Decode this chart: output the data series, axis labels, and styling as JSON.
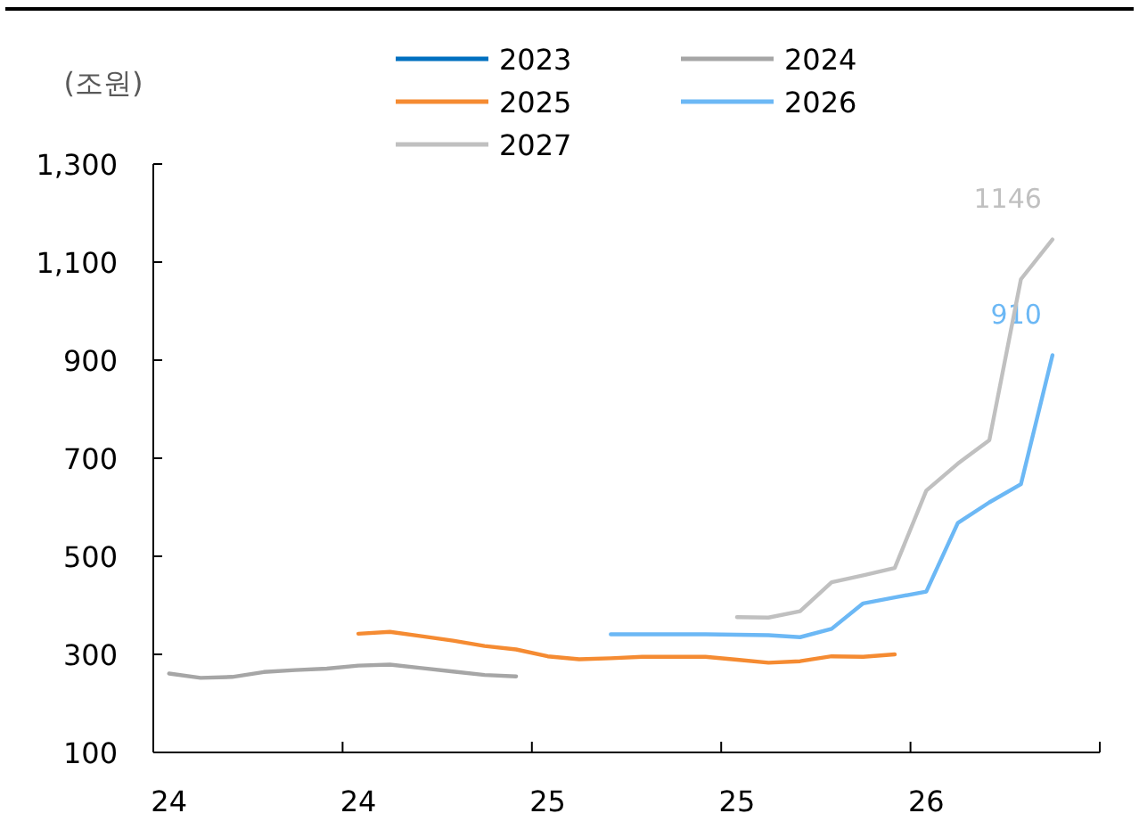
{
  "chart_data": {
    "type": "line",
    "ylabel": "(조원)",
    "categories": [
      "24",
      null,
      null,
      null,
      null,
      null,
      "24",
      null,
      null,
      null,
      null,
      null,
      "25",
      null,
      null,
      null,
      null,
      null,
      "25",
      null,
      null,
      null,
      null,
      null,
      "26",
      null,
      null,
      null,
      null,
      null
    ],
    "series": [
      {
        "name": "2023",
        "color": "#0070c0",
        "values": [
          null,
          null,
          null,
          null,
          null,
          null,
          null,
          null,
          null,
          null,
          null,
          null,
          null,
          null,
          null,
          null,
          null,
          null,
          null,
          null,
          null,
          null,
          null,
          null,
          null,
          null,
          null,
          null,
          null,
          null
        ]
      },
      {
        "name": "2024",
        "color": "#a6a6a6",
        "values": [
          261,
          252,
          254,
          264,
          268,
          271,
          277,
          279,
          272,
          265,
          258,
          255,
          null,
          null,
          null,
          null,
          null,
          null,
          null,
          null,
          null,
          null,
          null,
          null,
          null,
          null,
          null,
          null,
          null,
          null
        ]
      },
      {
        "name": "2025",
        "color": "#f58b32",
        "values": [
          null,
          null,
          null,
          null,
          null,
          null,
          342,
          346,
          337,
          328,
          317,
          310,
          296,
          290,
          292,
          295,
          295,
          295,
          289,
          283,
          286,
          296,
          295,
          300,
          null,
          null,
          null,
          null,
          null,
          null
        ]
      },
      {
        "name": "2026",
        "color": "#6cb8f5",
        "values": [
          null,
          null,
          null,
          null,
          null,
          null,
          null,
          null,
          null,
          null,
          null,
          null,
          null,
          null,
          341,
          341,
          341,
          341,
          340,
          339,
          335,
          352,
          404,
          416,
          428,
          568,
          610,
          647,
          910,
          null
        ],
        "value_labels": [
          null,
          null,
          null,
          null,
          null,
          null,
          null,
          null,
          null,
          null,
          null,
          null,
          null,
          null,
          null,
          null,
          null,
          null,
          null,
          null,
          null,
          null,
          null,
          null,
          null,
          null,
          null,
          null,
          "910",
          null
        ]
      },
      {
        "name": "2027",
        "color": "#c0c0c0",
        "values": [
          null,
          null,
          null,
          null,
          null,
          null,
          null,
          null,
          null,
          null,
          null,
          null,
          null,
          null,
          null,
          null,
          null,
          null,
          376,
          375,
          388,
          447,
          461,
          476,
          634,
          689,
          737,
          1065,
          1146,
          null
        ],
        "value_labels": [
          null,
          null,
          null,
          null,
          null,
          null,
          null,
          null,
          null,
          null,
          null,
          null,
          null,
          null,
          null,
          null,
          null,
          null,
          null,
          null,
          null,
          null,
          null,
          null,
          null,
          null,
          null,
          null,
          "1146",
          null
        ]
      }
    ],
    "ylim": [
      100,
      1300
    ],
    "yticks": [
      100,
      300,
      500,
      700,
      900,
      {
        "value": 1100,
        "label": "1,100"
      },
      {
        "value": 1300,
        "label": "1,300"
      }
    ],
    "grid": false,
    "legend": "top",
    "marker": "none",
    "line_style": "solid"
  }
}
